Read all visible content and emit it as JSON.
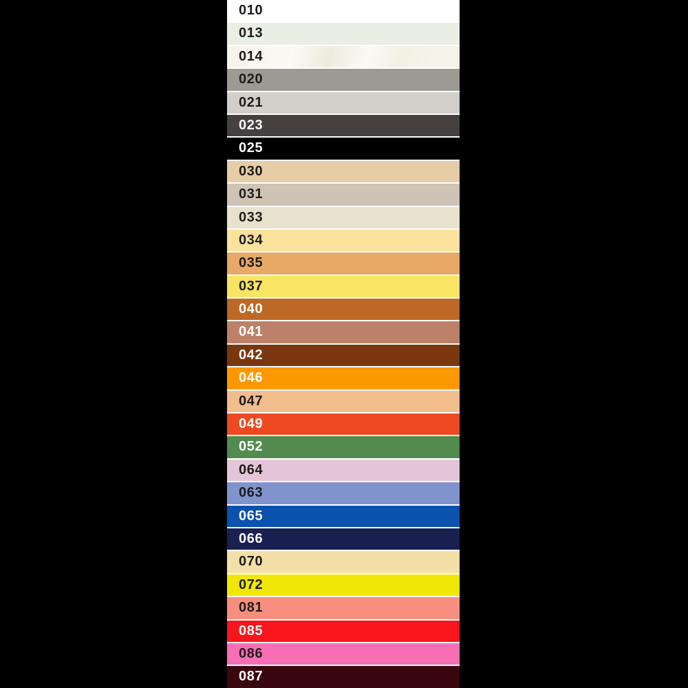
{
  "palette": {
    "page_background": "#000000",
    "separator": "#ffffff",
    "label_dark": "#1d1d1b",
    "label_light": "#ffffff"
  },
  "chart_data": {
    "type": "table",
    "title": "",
    "columns": [
      "code",
      "swatch_hex",
      "label_tone"
    ],
    "legend_position": "none",
    "grid": false,
    "rows": [
      {
        "code": "010",
        "hex": "#fefefe",
        "label": "dark"
      },
      {
        "code": "013",
        "hex": "#eaefe4",
        "label": "dark"
      },
      {
        "code": "014",
        "hex": "#f6f3e9",
        "label": "dark",
        "sheen": true
      },
      {
        "code": "020",
        "hex": "#9b9a93",
        "label": "dark"
      },
      {
        "code": "021",
        "hex": "#d2cfca",
        "label": "dark"
      },
      {
        "code": "023",
        "hex": "#474040",
        "label": "light"
      },
      {
        "code": "025",
        "hex": "#000000",
        "label": "light"
      },
      {
        "code": "030",
        "hex": "#e6cda6",
        "label": "dark"
      },
      {
        "code": "031",
        "hex": "#cec3b4",
        "label": "dark"
      },
      {
        "code": "033",
        "hex": "#e7e2cd",
        "label": "dark"
      },
      {
        "code": "034",
        "hex": "#fae29c",
        "label": "dark"
      },
      {
        "code": "035",
        "hex": "#e8a866",
        "label": "dark"
      },
      {
        "code": "037",
        "hex": "#f9e464",
        "label": "dark"
      },
      {
        "code": "040",
        "hex": "#bd6825",
        "label": "light"
      },
      {
        "code": "041",
        "hex": "#bd8169",
        "label": "light"
      },
      {
        "code": "042",
        "hex": "#7a370e",
        "label": "light"
      },
      {
        "code": "046",
        "hex": "#fb9802",
        "label": "light"
      },
      {
        "code": "047",
        "hex": "#f2bd8c",
        "label": "dark"
      },
      {
        "code": "049",
        "hex": "#ee4a22",
        "label": "light"
      },
      {
        "code": "052",
        "hex": "#538a4e",
        "label": "light"
      },
      {
        "code": "064",
        "hex": "#e4c5d7",
        "label": "dark"
      },
      {
        "code": "063",
        "hex": "#8093cc",
        "label": "dark"
      },
      {
        "code": "065",
        "hex": "#0b51ae",
        "label": "light"
      },
      {
        "code": "066",
        "hex": "#1a2150",
        "label": "light"
      },
      {
        "code": "070",
        "hex": "#f5dfa8",
        "label": "dark"
      },
      {
        "code": "072",
        "hex": "#f0e706",
        "label": "dark"
      },
      {
        "code": "081",
        "hex": "#f78e7e",
        "label": "dark"
      },
      {
        "code": "085",
        "hex": "#f8151c",
        "label": "light"
      },
      {
        "code": "086",
        "hex": "#f76eb4",
        "label": "dark"
      },
      {
        "code": "087",
        "hex": "#3a070e",
        "label": "light"
      }
    ]
  }
}
